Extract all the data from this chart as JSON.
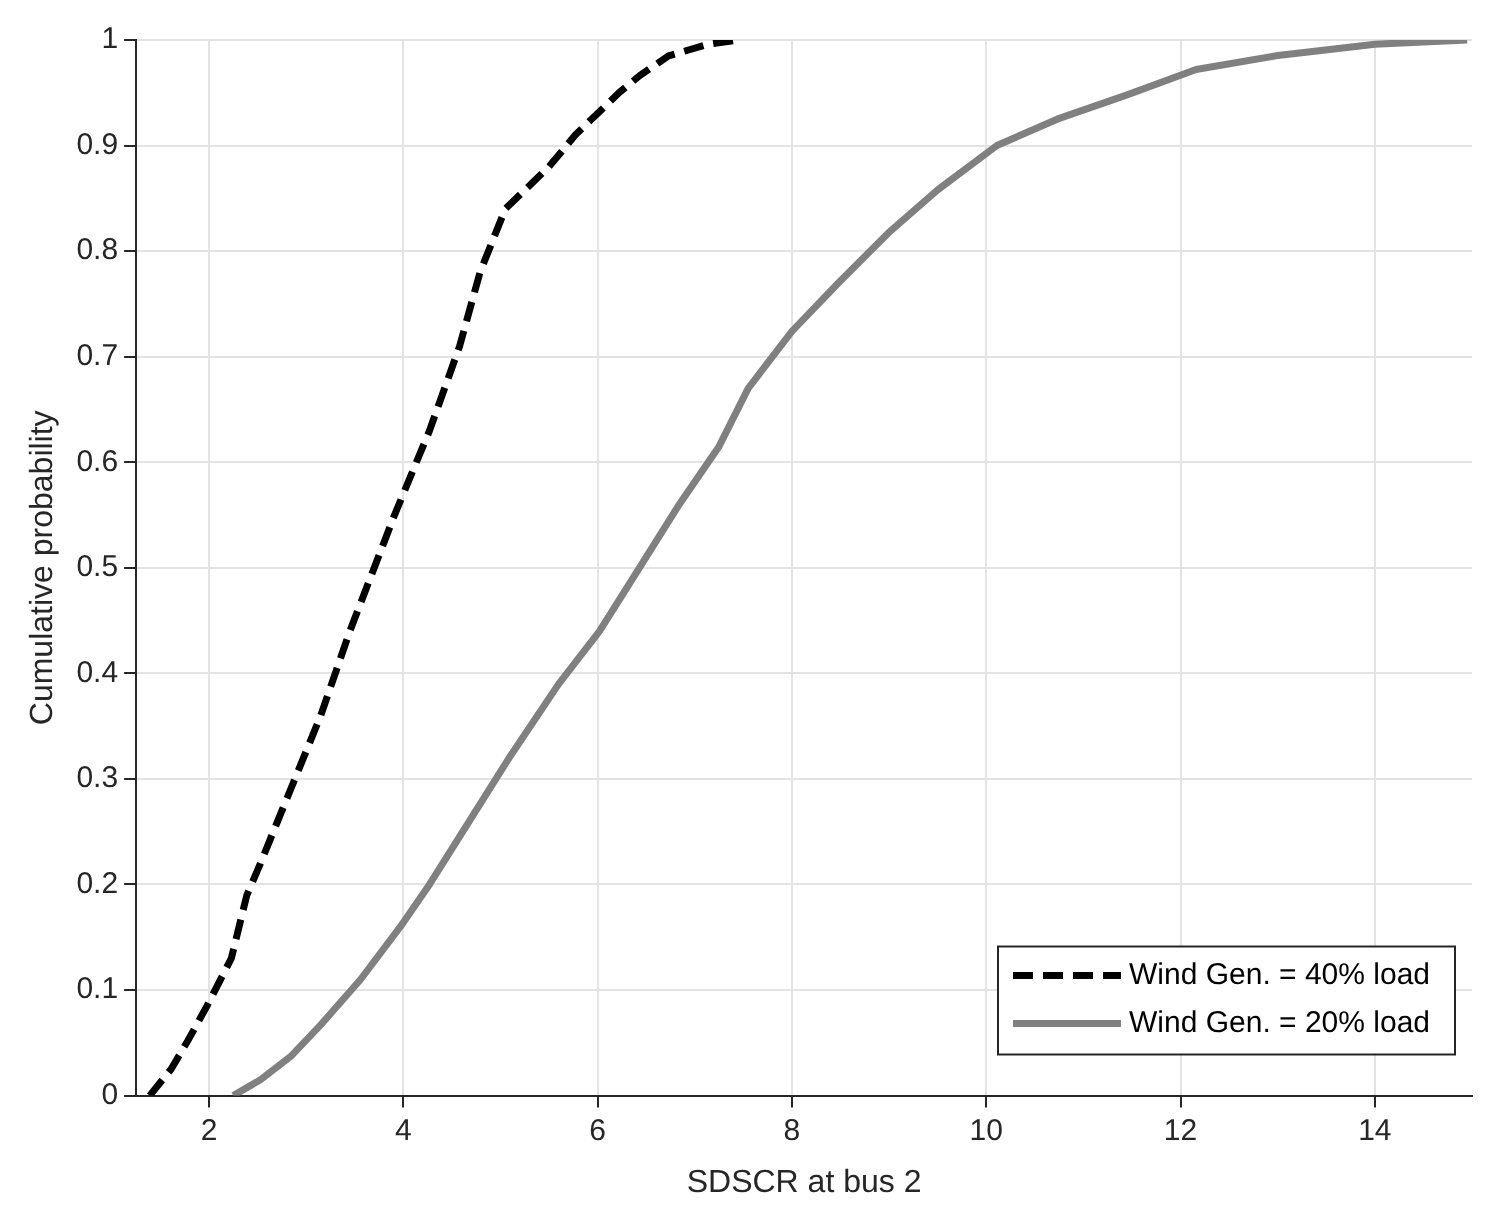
{
  "chart_data": {
    "type": "line",
    "xlabel": "SDSCR at bus 2",
    "ylabel": "Cumulative probability",
    "xlim": [
      1.25,
      15
    ],
    "xticks": [
      2,
      4,
      6,
      8,
      10,
      12,
      14
    ],
    "ylim": [
      0,
      1
    ],
    "yticks": [
      0,
      0.1,
      0.2,
      0.3,
      0.4,
      0.5,
      0.6,
      0.7,
      0.8,
      0.9,
      1
    ],
    "grid": true,
    "legend": "bottom right",
    "marker": "none",
    "series": [
      {
        "name": "Wind Gen. = 40% load",
        "color": "#000000",
        "line_style": "dashed",
        "x": [
          1.39,
          1.61,
          1.77,
          1.98,
          2.23,
          2.39,
          2.53,
          2.84,
          3.15,
          3.45,
          3.91,
          4.27,
          4.58,
          4.79,
          5.05,
          5.5,
          5.77,
          6.22,
          6.43,
          6.73,
          7.14,
          7.45
        ],
        "values": [
          0,
          0.025,
          0.05,
          0.085,
          0.13,
          0.19,
          0.22,
          0.29,
          0.36,
          0.44,
          0.55,
          0.63,
          0.71,
          0.78,
          0.84,
          0.88,
          0.91,
          0.95,
          0.966,
          0.985,
          0.996,
          1
        ]
      },
      {
        "name": "Wind Gen. = 20% load",
        "color": "#808080",
        "line_style": "solid",
        "x": [
          2.25,
          2.53,
          2.84,
          3.15,
          3.56,
          3.97,
          4.27,
          4.68,
          5.09,
          5.6,
          6.02,
          6.43,
          6.84,
          7.25,
          7.55,
          8.0,
          8.48,
          8.99,
          9.5,
          10.11,
          10.73,
          11.45,
          12.16,
          12.98,
          14.0,
          14.95
        ],
        "values": [
          0,
          0.015,
          0.037,
          0.067,
          0.11,
          0.16,
          0.2,
          0.26,
          0.32,
          0.39,
          0.44,
          0.5,
          0.56,
          0.615,
          0.67,
          0.724,
          0.77,
          0.817,
          0.858,
          0.9,
          0.925,
          0.948,
          0.972,
          0.985,
          0.996,
          1
        ]
      }
    ]
  }
}
